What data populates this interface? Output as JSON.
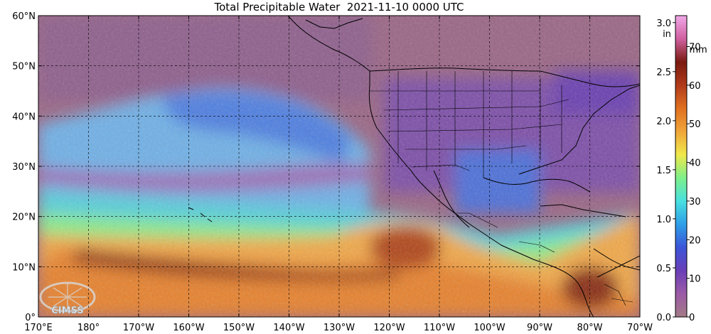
{
  "title": "Total Precipitable Water  2021-11-10 0000 UTC",
  "map": {
    "lat_range": [
      0,
      60
    ],
    "lon_range": [
      170,
      290
    ],
    "lat_labels": [
      "0°",
      "10°N",
      "20°N",
      "30°N",
      "40°N",
      "50°N",
      "60°N"
    ],
    "lon_labels": [
      "170°E",
      "180°",
      "170°W",
      "160°W",
      "150°W",
      "140°W",
      "130°W",
      "120°W",
      "110°W",
      "100°W",
      "90°W",
      "80°W",
      "70°W"
    ],
    "grid": true,
    "logo_text": "CIMSS",
    "colors": {
      "land_dry": "#8a5a8c",
      "ocean_dry": "#9c6a86",
      "moist_low": "#4a6fd6",
      "moist_mid": "#52b8ee",
      "moist_high": "#e8883a",
      "moist_peak": "#8c2e1a"
    }
  },
  "colorbar": {
    "inch_ticks": [
      "0.0",
      "0.5",
      "1.0",
      "1.5",
      "2.0",
      "2.5",
      "3.0"
    ],
    "inch_unit": "in",
    "mm_ticks": [
      "0",
      "10",
      "20",
      "30",
      "40",
      "50",
      "60",
      "70"
    ],
    "mm_unit": "mm",
    "max_mm": 78,
    "stops": [
      "#a37b86",
      "#9b5aa6",
      "#6a3fb8",
      "#3b55d8",
      "#2e9fe8",
      "#48e0e0",
      "#7ef08a",
      "#f0e84a",
      "#f0a53a",
      "#e07020",
      "#b03a1a",
      "#7a1a10",
      "#d060a0",
      "#f0a8e8"
    ]
  }
}
